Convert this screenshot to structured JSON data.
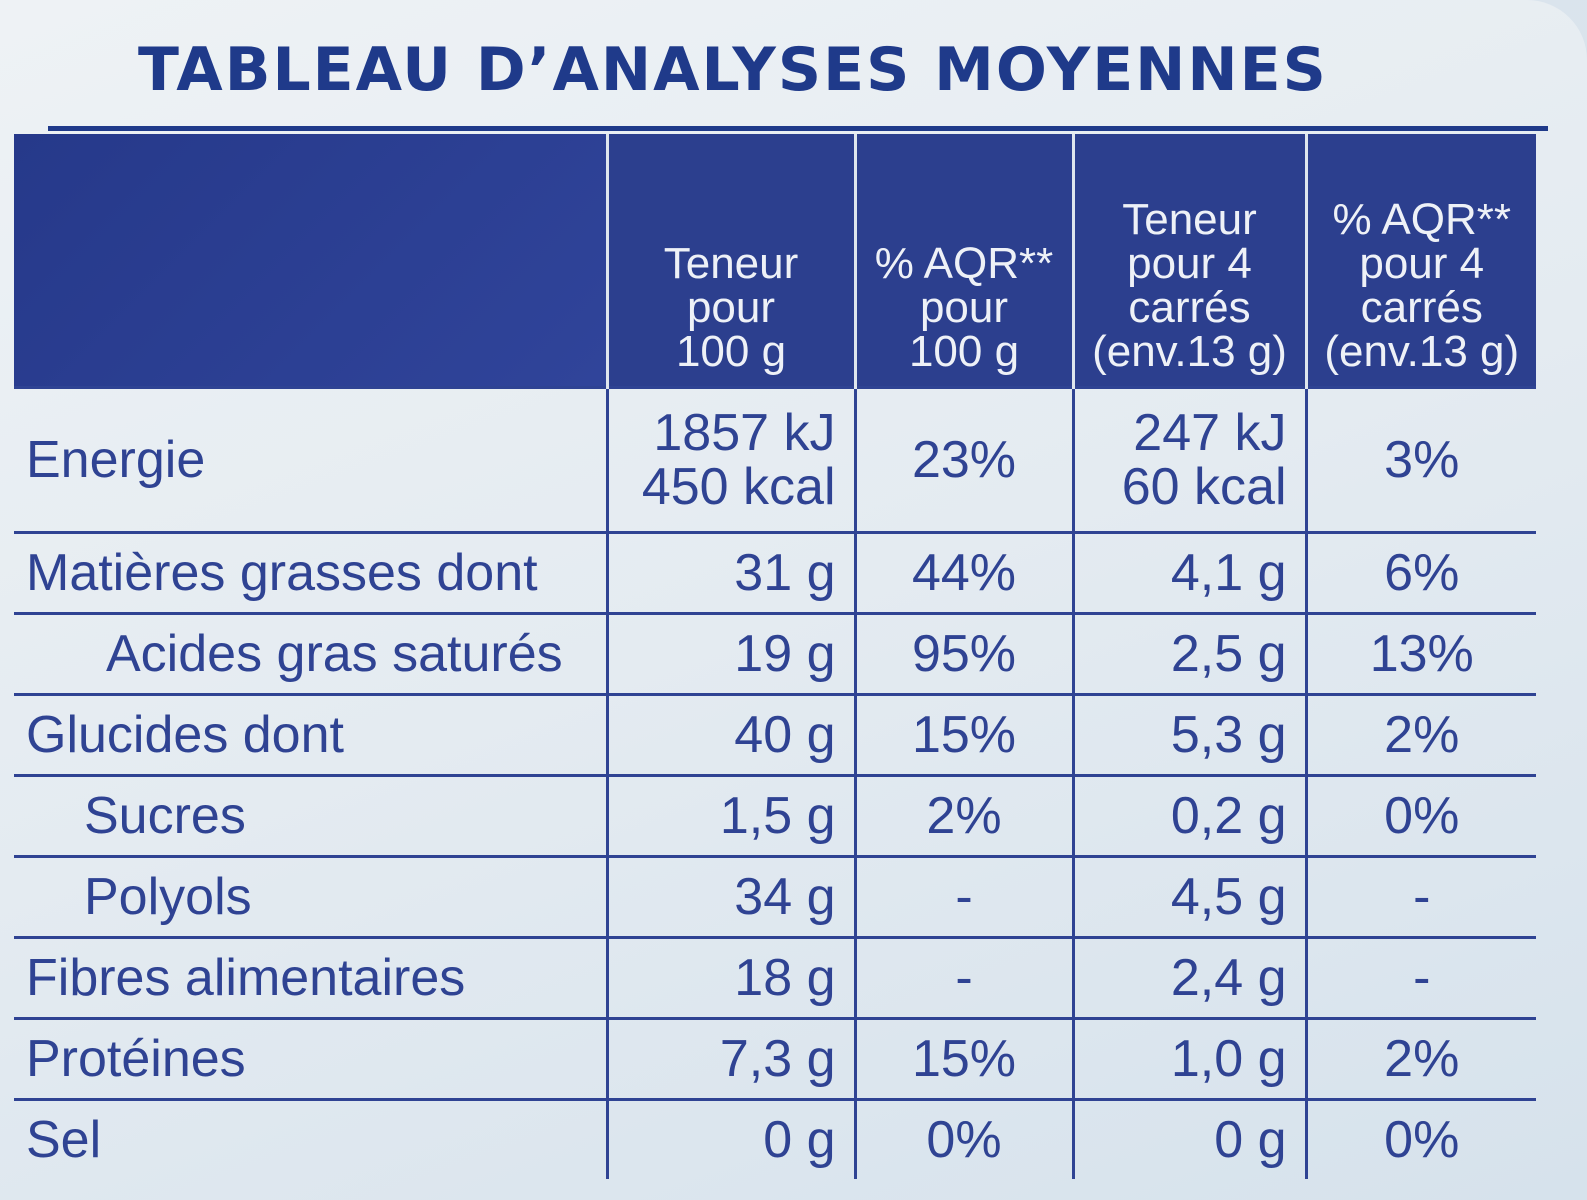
{
  "title": "TABLEAU D’ANALYSES MOYENNES",
  "header": {
    "col1": [
      "Teneur",
      "pour",
      "100 g"
    ],
    "col2": [
      "% AQR**",
      "pour",
      "100 g"
    ],
    "col3": [
      "Teneur",
      "pour 4",
      "carrés",
      "(env.13 g)"
    ],
    "col4": [
      "% AQR**",
      "pour 4",
      "carrés",
      "(env.13 g)"
    ]
  },
  "rows": [
    {
      "name": "Energie",
      "v100": [
        "1857 kJ",
        "450 kcal"
      ],
      "aqr100": "23%",
      "v4": [
        "247 kJ",
        "60 kcal"
      ],
      "aqr4": "3%"
    },
    {
      "name": "Matières grasses dont",
      "v100": "31 g",
      "aqr100": "44%",
      "v4": "4,1 g",
      "aqr4": "6%"
    },
    {
      "name": "Acides gras saturés",
      "v100": "19 g",
      "aqr100": "95%",
      "v4": "2,5 g",
      "aqr4": "13%"
    },
    {
      "name": "Glucides dont",
      "v100": "40 g",
      "aqr100": "15%",
      "v4": "5,3 g",
      "aqr4": "2%"
    },
    {
      "name": "Sucres",
      "v100": "1,5 g",
      "aqr100": "2%",
      "v4": "0,2 g",
      "aqr4": "0%"
    },
    {
      "name": "Polyols",
      "v100": "34 g",
      "aqr100": "-",
      "v4": "4,5 g",
      "aqr4": "-"
    },
    {
      "name": "Fibres alimentaires",
      "v100": "18 g",
      "aqr100": "-",
      "v4": "2,4 g",
      "aqr4": "-"
    },
    {
      "name": "Protéines",
      "v100": "7,3 g",
      "aqr100": "15%",
      "v4": "1,0 g",
      "aqr4": "2%"
    },
    {
      "name": "Sel",
      "v100": "0 g",
      "aqr100": "0%",
      "v4": "0 g",
      "aqr4": "0%"
    }
  ]
}
